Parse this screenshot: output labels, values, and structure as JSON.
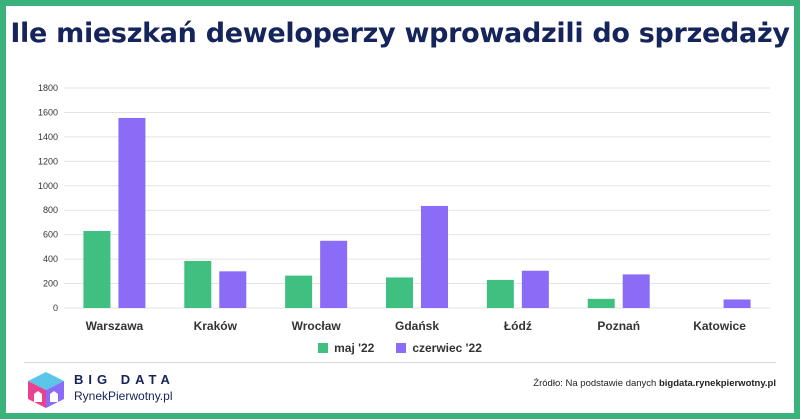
{
  "title": "Ile mieszkań deweloperzy wprowadzili do sprzedaży",
  "chart_data": {
    "type": "bar",
    "categories": [
      "Warszawa",
      "Kraków",
      "Wrocław",
      "Gdańsk",
      "Łódź",
      "Poznań",
      "Katowice"
    ],
    "series": [
      {
        "name": "maj '22",
        "values": [
          630,
          385,
          265,
          250,
          230,
          75,
          0
        ],
        "color": "#3fbf80"
      },
      {
        "name": "czerwiec '22",
        "values": [
          1555,
          300,
          550,
          835,
          305,
          275,
          70
        ],
        "color": "#8b6cf6"
      }
    ],
    "yticks": [
      0,
      200,
      400,
      600,
      800,
      1000,
      1200,
      1400,
      1600,
      1800
    ],
    "ylim": [
      0,
      1800
    ],
    "grid": true,
    "legend": "bottom"
  },
  "footer": {
    "brand_top": "BIG DATA",
    "brand_bottom": "RynekPierwotny.pl",
    "source_prefix": "Źródło: Na podstawie danych ",
    "source_bold": "bigdata.rynekpierwotny.pl"
  }
}
